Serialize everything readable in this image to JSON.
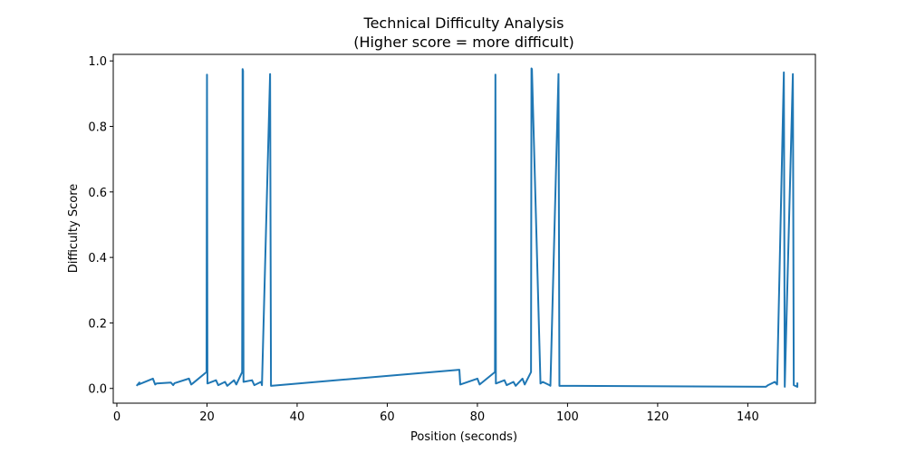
{
  "chart_data": {
    "type": "line",
    "title": "Technical Difficulty Analysis",
    "subtitle": "(Higher score = more difficult)",
    "xlabel": "Position (seconds)",
    "ylabel": "Difficulty Score",
    "xlim": [
      -0.8,
      155
    ],
    "ylim": [
      -0.045,
      1.02
    ],
    "xticks": [
      0,
      20,
      40,
      60,
      80,
      100,
      120,
      140
    ],
    "yticks": [
      0.0,
      0.2,
      0.4,
      0.6,
      0.8,
      1.0
    ],
    "xtick_labels": [
      "0",
      "20",
      "40",
      "60",
      "80",
      "100",
      "120",
      "140"
    ],
    "ytick_labels": [
      "0.0",
      "0.2",
      "0.4",
      "0.6",
      "0.8",
      "1.0"
    ],
    "grid": false,
    "color": "#1f77b4",
    "series": [
      {
        "x": [
          4.5,
          5.0,
          4.8,
          8.0,
          8.5,
          8.8,
          12.0,
          12.5,
          12.8,
          16.0,
          16.5,
          16.8,
          19.9,
          20.0,
          20.1,
          22.0,
          22.5,
          24.0,
          24.5,
          26.0,
          26.5,
          27.8,
          27.9,
          28.0,
          28.1,
          30.0,
          30.5,
          32.0,
          32.2,
          34.0,
          34.2,
          76.0,
          76.2,
          80.0,
          80.5,
          83.9,
          84.0,
          84.1,
          86.0,
          86.5,
          88.0,
          88.5,
          90.0,
          90.5,
          91.9,
          92.0,
          92.1,
          94.0,
          94.5,
          96.0,
          96.2,
          98.0,
          98.2,
          144.0,
          144.5,
          146.0,
          146.5,
          148.0,
          148.2,
          150.0,
          150.2,
          151.0,
          151.0
        ],
        "y": [
          0.01,
          0.018,
          0.012,
          0.03,
          0.012,
          0.015,
          0.018,
          0.01,
          0.016,
          0.03,
          0.012,
          0.015,
          0.05,
          0.958,
          0.015,
          0.025,
          0.01,
          0.02,
          0.008,
          0.025,
          0.012,
          0.05,
          0.975,
          0.97,
          0.02,
          0.025,
          0.01,
          0.02,
          0.01,
          0.96,
          0.008,
          0.057,
          0.012,
          0.03,
          0.012,
          0.05,
          0.958,
          0.015,
          0.025,
          0.01,
          0.02,
          0.008,
          0.03,
          0.012,
          0.05,
          0.977,
          0.975,
          0.015,
          0.02,
          0.01,
          0.008,
          0.96,
          0.008,
          0.005,
          0.01,
          0.02,
          0.012,
          0.965,
          0.005,
          0.96,
          0.01,
          0.005,
          0.015
        ]
      }
    ]
  }
}
